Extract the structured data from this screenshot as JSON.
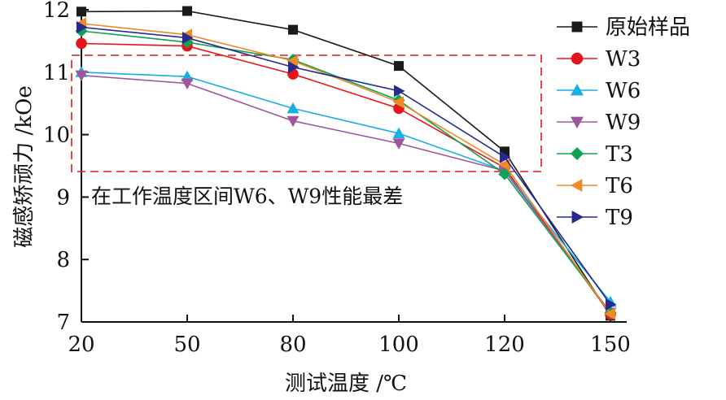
{
  "chart_data": {
    "type": "line",
    "title": "",
    "xlabel": "测试温度 /℃",
    "ylabel": "磁感矫顽力 /kOe",
    "x_categories": [
      20,
      50,
      80,
      100,
      120,
      150
    ],
    "ylim": [
      7,
      12
    ],
    "yticks": [
      7,
      8,
      9,
      10,
      11,
      12
    ],
    "grid": false,
    "legend_position": "right",
    "annotation": "在工作温度区间W6、W9性能最差",
    "series": [
      {
        "name": "原始样品",
        "color": "#1a1a1a",
        "marker": "square",
        "values": [
          11.97,
          11.98,
          11.68,
          11.1,
          9.73,
          7.1
        ]
      },
      {
        "name": "W3",
        "color": "#e8141b",
        "marker": "circle",
        "values": [
          11.46,
          11.42,
          10.97,
          10.42,
          9.47,
          7.12
        ]
      },
      {
        "name": "W6",
        "color": "#16aee5",
        "marker": "triangle-up",
        "values": [
          11.0,
          10.93,
          10.42,
          10.02,
          9.42,
          7.32
        ]
      },
      {
        "name": "W9",
        "color": "#a0569d",
        "marker": "triangle-down",
        "values": [
          10.95,
          10.82,
          10.22,
          9.86,
          9.42,
          7.15
        ]
      },
      {
        "name": "T3",
        "color": "#10a254",
        "marker": "diamond",
        "values": [
          11.66,
          11.48,
          11.2,
          10.55,
          9.37,
          7.15
        ]
      },
      {
        "name": "T6",
        "color": "#ef8a24",
        "marker": "triangle-left",
        "values": [
          11.78,
          11.6,
          11.18,
          10.52,
          9.52,
          7.13
        ]
      },
      {
        "name": "T9",
        "color": "#262a8e",
        "marker": "triangle-right",
        "values": [
          11.72,
          11.55,
          11.08,
          10.7,
          9.64,
          7.28
        ]
      }
    ]
  }
}
